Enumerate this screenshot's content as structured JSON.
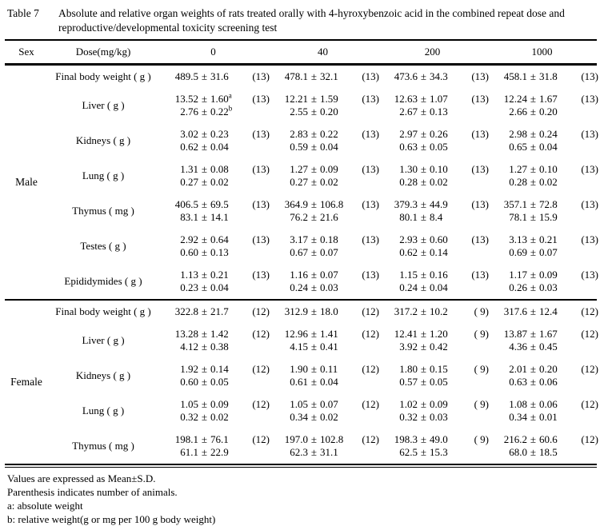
{
  "title": {
    "label": "Table 7",
    "text": "Absolute and relative organ weights of rats treated orally with 4-hyroxybenzoic acid in the combined repeat dose and reproductive/developmental toxicity screening test"
  },
  "table": {
    "header": {
      "sex": "Sex",
      "dose": "Dose(mg/kg)",
      "doses": [
        "0",
        "40",
        "200",
        "1000"
      ]
    },
    "sections": [
      {
        "sex": "Male",
        "rows": [
          {
            "organ": "Final body weight ( g )",
            "cells": [
              [
                {
                  "m": "489.5",
                  "s": "31.6",
                  "n": "(13)"
                }
              ],
              [
                {
                  "m": "478.1",
                  "s": "32.1",
                  "n": "(13)"
                }
              ],
              [
                {
                  "m": "473.6",
                  "s": "34.3",
                  "n": "(13)"
                }
              ],
              [
                {
                  "m": "458.1",
                  "s": "31.8",
                  "n": "(13)"
                }
              ]
            ]
          },
          {
            "organ": "Liver ( g )",
            "cells": [
              [
                {
                  "m": "13.52",
                  "s": "1.60",
                  "sup": "a",
                  "n": "(13)"
                },
                {
                  "m": "2.76",
                  "s": "0.22",
                  "sup": "b"
                }
              ],
              [
                {
                  "m": "12.21",
                  "s": "1.59",
                  "n": "(13)"
                },
                {
                  "m": "2.55",
                  "s": "0.20"
                }
              ],
              [
                {
                  "m": "12.63",
                  "s": "1.07",
                  "n": "(13)"
                },
                {
                  "m": "2.67",
                  "s": "0.13"
                }
              ],
              [
                {
                  "m": "12.24",
                  "s": "1.67",
                  "n": "(13)"
                },
                {
                  "m": "2.66",
                  "s": "0.20"
                }
              ]
            ]
          },
          {
            "organ": "Kidneys ( g )",
            "cells": [
              [
                {
                  "m": "3.02",
                  "s": "0.23",
                  "n": "(13)"
                },
                {
                  "m": "0.62",
                  "s": "0.04"
                }
              ],
              [
                {
                  "m": "2.83",
                  "s": "0.22",
                  "n": "(13)"
                },
                {
                  "m": "0.59",
                  "s": "0.04"
                }
              ],
              [
                {
                  "m": "2.97",
                  "s": "0.26",
                  "n": "(13)"
                },
                {
                  "m": "0.63",
                  "s": "0.05"
                }
              ],
              [
                {
                  "m": "2.98",
                  "s": "0.24",
                  "n": "(13)"
                },
                {
                  "m": "0.65",
                  "s": "0.04"
                }
              ]
            ]
          },
          {
            "organ": "Lung ( g )",
            "cells": [
              [
                {
                  "m": "1.31",
                  "s": "0.08",
                  "n": "(13)"
                },
                {
                  "m": "0.27",
                  "s": "0.02"
                }
              ],
              [
                {
                  "m": "1.27",
                  "s": "0.09",
                  "n": "(13)"
                },
                {
                  "m": "0.27",
                  "s": "0.02"
                }
              ],
              [
                {
                  "m": "1.30",
                  "s": "0.10",
                  "n": "(13)"
                },
                {
                  "m": "0.28",
                  "s": "0.02"
                }
              ],
              [
                {
                  "m": "1.27",
                  "s": "0.10",
                  "n": "(13)"
                },
                {
                  "m": "0.28",
                  "s": "0.02"
                }
              ]
            ]
          },
          {
            "organ": "Thymus ( mg )",
            "cells": [
              [
                {
                  "m": "406.5",
                  "s": "69.5",
                  "n": "(13)"
                },
                {
                  "m": "83.1",
                  "s": "14.1"
                }
              ],
              [
                {
                  "m": "364.9",
                  "s": "106.8",
                  "n": "(13)"
                },
                {
                  "m": "76.2",
                  "s": "21.6"
                }
              ],
              [
                {
                  "m": "379.3",
                  "s": "44.9",
                  "n": "(13)"
                },
                {
                  "m": "80.1",
                  "s": "8.4"
                }
              ],
              [
                {
                  "m": "357.1",
                  "s": "72.8",
                  "n": "(13)"
                },
                {
                  "m": "78.1",
                  "s": "15.9"
                }
              ]
            ]
          },
          {
            "organ": "Testes ( g )",
            "cells": [
              [
                {
                  "m": "2.92",
                  "s": "0.64",
                  "n": "(13)"
                },
                {
                  "m": "0.60",
                  "s": "0.13"
                }
              ],
              [
                {
                  "m": "3.17",
                  "s": "0.18",
                  "n": "(13)"
                },
                {
                  "m": "0.67",
                  "s": "0.07"
                }
              ],
              [
                {
                  "m": "2.93",
                  "s": "0.60",
                  "n": "(13)"
                },
                {
                  "m": "0.62",
                  "s": "0.14"
                }
              ],
              [
                {
                  "m": "3.13",
                  "s": "0.21",
                  "n": "(13)"
                },
                {
                  "m": "0.69",
                  "s": "0.07"
                }
              ]
            ]
          },
          {
            "organ": "Epididymides ( g )",
            "cells": [
              [
                {
                  "m": "1.13",
                  "s": "0.21",
                  "n": "(13)"
                },
                {
                  "m": "0.23",
                  "s": "0.04"
                }
              ],
              [
                {
                  "m": "1.16",
                  "s": "0.07",
                  "n": "(13)"
                },
                {
                  "m": "0.24",
                  "s": "0.03"
                }
              ],
              [
                {
                  "m": "1.15",
                  "s": "0.16",
                  "n": "(13)"
                },
                {
                  "m": "0.24",
                  "s": "0.04"
                }
              ],
              [
                {
                  "m": "1.17",
                  "s": "0.09",
                  "n": "(13)"
                },
                {
                  "m": "0.26",
                  "s": "0.03"
                }
              ]
            ]
          }
        ]
      },
      {
        "sex": "Female",
        "rows": [
          {
            "organ": "Final body weight ( g )",
            "cells": [
              [
                {
                  "m": "322.8",
                  "s": "21.7",
                  "n": "(12)"
                }
              ],
              [
                {
                  "m": "312.9",
                  "s": "18.0",
                  "n": "(12)"
                }
              ],
              [
                {
                  "m": "317.2",
                  "s": "10.2",
                  "n": "( 9)"
                }
              ],
              [
                {
                  "m": "317.6",
                  "s": "12.4",
                  "n": "(12)"
                }
              ]
            ]
          },
          {
            "organ": "Liver ( g )",
            "cells": [
              [
                {
                  "m": "13.28",
                  "s": "1.42",
                  "n": "(12)"
                },
                {
                  "m": "4.12",
                  "s": "0.38"
                }
              ],
              [
                {
                  "m": "12.96",
                  "s": "1.41",
                  "n": "(12)"
                },
                {
                  "m": "4.15",
                  "s": "0.41"
                }
              ],
              [
                {
                  "m": "12.41",
                  "s": "1.20",
                  "n": "( 9)"
                },
                {
                  "m": "3.92",
                  "s": "0.42"
                }
              ],
              [
                {
                  "m": "13.87",
                  "s": "1.67",
                  "n": "(12)"
                },
                {
                  "m": "4.36",
                  "s": "0.45"
                }
              ]
            ]
          },
          {
            "organ": "Kidneys ( g )",
            "cells": [
              [
                {
                  "m": "1.92",
                  "s": "0.14",
                  "n": "(12)"
                },
                {
                  "m": "0.60",
                  "s": "0.05"
                }
              ],
              [
                {
                  "m": "1.90",
                  "s": "0.11",
                  "n": "(12)"
                },
                {
                  "m": "0.61",
                  "s": "0.04"
                }
              ],
              [
                {
                  "m": "1.80",
                  "s": "0.15",
                  "n": "( 9)"
                },
                {
                  "m": "0.57",
                  "s": "0.05"
                }
              ],
              [
                {
                  "m": "2.01",
                  "s": "0.20",
                  "n": "(12)"
                },
                {
                  "m": "0.63",
                  "s": "0.06"
                }
              ]
            ]
          },
          {
            "organ": "Lung ( g )",
            "cells": [
              [
                {
                  "m": "1.05",
                  "s": "0.09",
                  "n": "(12)"
                },
                {
                  "m": "0.32",
                  "s": "0.02"
                }
              ],
              [
                {
                  "m": "1.05",
                  "s": "0.07",
                  "n": "(12)"
                },
                {
                  "m": "0.34",
                  "s": "0.02"
                }
              ],
              [
                {
                  "m": "1.02",
                  "s": "0.09",
                  "n": "( 9)"
                },
                {
                  "m": "0.32",
                  "s": "0.03"
                }
              ],
              [
                {
                  "m": "1.08",
                  "s": "0.06",
                  "n": "(12)"
                },
                {
                  "m": "0.34",
                  "s": "0.01"
                }
              ]
            ]
          },
          {
            "organ": "Thymus ( mg )",
            "cells": [
              [
                {
                  "m": "198.1",
                  "s": "76.1",
                  "n": "(12)"
                },
                {
                  "m": "61.1",
                  "s": "22.9"
                }
              ],
              [
                {
                  "m": "197.0",
                  "s": "102.8",
                  "n": "(12)"
                },
                {
                  "m": "62.3",
                  "s": "31.1"
                }
              ],
              [
                {
                  "m": "198.3",
                  "s": "49.0",
                  "n": "( 9)"
                },
                {
                  "m": "62.5",
                  "s": "15.3"
                }
              ],
              [
                {
                  "m": "216.2",
                  "s": "60.6",
                  "n": "(12)"
                },
                {
                  "m": "68.0",
                  "s": "18.5"
                }
              ]
            ]
          }
        ]
      }
    ]
  },
  "footnotes": [
    "Values are expressed as Mean±S.D.",
    "Parenthesis indicates number of animals.",
    "a: absolute weight",
    "b: relative weight(g or mg per 100 g body weight)"
  ]
}
